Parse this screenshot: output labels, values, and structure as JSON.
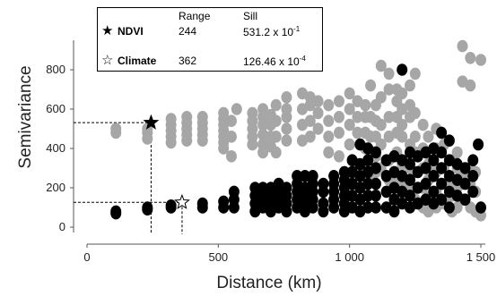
{
  "chart_data": {
    "type": "scatter",
    "xlabel": "Distance (km)",
    "ylabel": "Semivariance",
    "xlim": [
      -30,
      1530
    ],
    "ylim": [
      -30,
      950
    ],
    "x_ticks": [
      0,
      500,
      1000,
      1500
    ],
    "x_tick_labels": [
      "0",
      "500",
      "1 000",
      "1 500"
    ],
    "y_ticks": [
      0,
      200,
      400,
      600,
      800
    ],
    "y_tick_labels": [
      "0",
      "200",
      "400",
      "600",
      "800"
    ],
    "grid": false,
    "legend": {
      "placement": "top-left",
      "headers": [
        "Range",
        "Sill"
      ],
      "entries": [
        {
          "symbol": "filled-star",
          "name": "NDVI",
          "range": "244",
          "sill_base": "531.2 x 10",
          "sill_exp": "-1"
        },
        {
          "symbol": "open-star",
          "name": "Climate",
          "range": "362",
          "sill_base": "126.46 x 10",
          "sill_exp": "-4"
        }
      ]
    },
    "markers": [
      {
        "series": "NDVI",
        "x": 244,
        "y": 531
      },
      {
        "series": "Climate",
        "x": 362,
        "y": 126
      }
    ],
    "series": [
      {
        "color": "#a6a6a6",
        "points": [
          [
            110,
            480
          ],
          [
            110,
            500
          ],
          [
            230,
            450
          ],
          [
            230,
            480
          ],
          [
            230,
            500
          ],
          [
            320,
            430
          ],
          [
            320,
            460
          ],
          [
            320,
            490
          ],
          [
            320,
            520
          ],
          [
            320,
            550
          ],
          [
            380,
            440
          ],
          [
            380,
            470
          ],
          [
            380,
            500
          ],
          [
            380,
            530
          ],
          [
            380,
            560
          ],
          [
            440,
            440
          ],
          [
            440,
            470
          ],
          [
            440,
            500
          ],
          [
            440,
            530
          ],
          [
            440,
            560
          ],
          [
            520,
            400
          ],
          [
            520,
            430
          ],
          [
            520,
            460
          ],
          [
            520,
            490
          ],
          [
            520,
            520
          ],
          [
            520,
            550
          ],
          [
            520,
            580
          ],
          [
            550,
            360
          ],
          [
            550,
            460
          ],
          [
            550,
            540
          ],
          [
            570,
            600
          ],
          [
            630,
            420
          ],
          [
            630,
            460
          ],
          [
            630,
            500
          ],
          [
            630,
            540
          ],
          [
            630,
            580
          ],
          [
            670,
            380
          ],
          [
            670,
            420
          ],
          [
            670,
            470
          ],
          [
            670,
            520
          ],
          [
            670,
            560
          ],
          [
            670,
            600
          ],
          [
            700,
            410
          ],
          [
            700,
            460
          ],
          [
            700,
            520
          ],
          [
            700,
            570
          ],
          [
            720,
            380
          ],
          [
            720,
            460
          ],
          [
            720,
            540
          ],
          [
            720,
            620
          ],
          [
            760,
            440
          ],
          [
            760,
            500
          ],
          [
            760,
            560
          ],
          [
            760,
            600
          ],
          [
            760,
            660
          ],
          [
            820,
            440
          ],
          [
            820,
            520
          ],
          [
            820,
            600
          ],
          [
            820,
            680
          ],
          [
            850,
            460
          ],
          [
            850,
            540
          ],
          [
            850,
            620
          ],
          [
            850,
            660
          ],
          [
            880,
            500
          ],
          [
            880,
            580
          ],
          [
            880,
            640
          ],
          [
            920,
            380
          ],
          [
            920,
            460
          ],
          [
            920,
            540
          ],
          [
            920,
            620
          ],
          [
            960,
            360
          ],
          [
            960,
            480
          ],
          [
            960,
            560
          ],
          [
            960,
            640
          ],
          [
            1000,
            420
          ],
          [
            1000,
            520
          ],
          [
            1000,
            600
          ],
          [
            1000,
            680
          ],
          [
            1030,
            320
          ],
          [
            1030,
            480
          ],
          [
            1030,
            560
          ],
          [
            1030,
            640
          ],
          [
            1060,
            300
          ],
          [
            1060,
            400
          ],
          [
            1060,
            480
          ],
          [
            1060,
            560
          ],
          [
            1060,
            620
          ],
          [
            1080,
            260
          ],
          [
            1080,
            380
          ],
          [
            1080,
            460
          ],
          [
            1080,
            560
          ],
          [
            1080,
            720
          ],
          [
            1100,
            280
          ],
          [
            1100,
            360
          ],
          [
            1100,
            460
          ],
          [
            1100,
            540
          ],
          [
            1100,
            620
          ],
          [
            1120,
            300
          ],
          [
            1120,
            420
          ],
          [
            1120,
            520
          ],
          [
            1120,
            660
          ],
          [
            1120,
            820
          ],
          [
            1150,
            240
          ],
          [
            1150,
            340
          ],
          [
            1150,
            460
          ],
          [
            1150,
            560
          ],
          [
            1150,
            700
          ],
          [
            1150,
            780
          ],
          [
            1180,
            260
          ],
          [
            1180,
            380
          ],
          [
            1180,
            480
          ],
          [
            1180,
            560
          ],
          [
            1180,
            640
          ],
          [
            1180,
            700
          ],
          [
            1200,
            220
          ],
          [
            1200,
            320
          ],
          [
            1200,
            460
          ],
          [
            1200,
            520
          ],
          [
            1200,
            600
          ],
          [
            1200,
            680
          ],
          [
            1230,
            200
          ],
          [
            1230,
            300
          ],
          [
            1230,
            420
          ],
          [
            1230,
            560
          ],
          [
            1230,
            620
          ],
          [
            1230,
            720
          ],
          [
            1250,
            140
          ],
          [
            1250,
            280
          ],
          [
            1250,
            380
          ],
          [
            1250,
            460
          ],
          [
            1250,
            580
          ],
          [
            1250,
            780
          ],
          [
            1280,
            100
          ],
          [
            1280,
            200
          ],
          [
            1280,
            300
          ],
          [
            1280,
            400
          ],
          [
            1280,
            520
          ],
          [
            1300,
            80
          ],
          [
            1300,
            150
          ],
          [
            1300,
            240
          ],
          [
            1300,
            320
          ],
          [
            1300,
            460
          ],
          [
            1330,
            100
          ],
          [
            1330,
            180
          ],
          [
            1330,
            280
          ],
          [
            1330,
            400
          ],
          [
            1330,
            500
          ],
          [
            1360,
            120
          ],
          [
            1360,
            220
          ],
          [
            1360,
            300
          ],
          [
            1360,
            420
          ],
          [
            1390,
            80
          ],
          [
            1390,
            160
          ],
          [
            1390,
            240
          ],
          [
            1390,
            340
          ],
          [
            1410,
            100
          ],
          [
            1410,
            200
          ],
          [
            1410,
            300
          ],
          [
            1410,
            380
          ],
          [
            1430,
            140
          ],
          [
            1430,
            260
          ],
          [
            1430,
            740
          ],
          [
            1430,
            920
          ],
          [
            1460,
            100
          ],
          [
            1460,
            220
          ],
          [
            1460,
            300
          ],
          [
            1460,
            720
          ],
          [
            1460,
            860
          ],
          [
            1480,
            80
          ],
          [
            1480,
            180
          ],
          [
            1480,
            280
          ],
          [
            1500,
            850
          ],
          [
            1500,
            60
          ]
        ]
      },
      {
        "color": "#000000",
        "points": [
          [
            110,
            70
          ],
          [
            110,
            80
          ],
          [
            230,
            90
          ],
          [
            230,
            100
          ],
          [
            320,
            100
          ],
          [
            320,
            110
          ],
          [
            440,
            100
          ],
          [
            440,
            120
          ],
          [
            520,
            100
          ],
          [
            520,
            130
          ],
          [
            560,
            100
          ],
          [
            560,
            140
          ],
          [
            560,
            180
          ],
          [
            640,
            80
          ],
          [
            640,
            120
          ],
          [
            640,
            160
          ],
          [
            640,
            200
          ],
          [
            670,
            100
          ],
          [
            670,
            140
          ],
          [
            670,
            180
          ],
          [
            670,
            200
          ],
          [
            700,
            80
          ],
          [
            700,
            120
          ],
          [
            700,
            160
          ],
          [
            700,
            200
          ],
          [
            730,
            100
          ],
          [
            730,
            140
          ],
          [
            730,
            180
          ],
          [
            730,
            220
          ],
          [
            760,
            80
          ],
          [
            760,
            120
          ],
          [
            760,
            160
          ],
          [
            760,
            200
          ],
          [
            800,
            100
          ],
          [
            800,
            140
          ],
          [
            800,
            180
          ],
          [
            800,
            220
          ],
          [
            800,
            260
          ],
          [
            830,
            80
          ],
          [
            830,
            120
          ],
          [
            830,
            160
          ],
          [
            830,
            200
          ],
          [
            830,
            260
          ],
          [
            860,
            100
          ],
          [
            860,
            140
          ],
          [
            860,
            180
          ],
          [
            860,
            220
          ],
          [
            860,
            260
          ],
          [
            900,
            80
          ],
          [
            900,
            120
          ],
          [
            900,
            180
          ],
          [
            900,
            220
          ],
          [
            940,
            100
          ],
          [
            940,
            140
          ],
          [
            940,
            180
          ],
          [
            940,
            220
          ],
          [
            940,
            260
          ],
          [
            980,
            80
          ],
          [
            980,
            120
          ],
          [
            980,
            160
          ],
          [
            980,
            200
          ],
          [
            980,
            240
          ],
          [
            980,
            280
          ],
          [
            1010,
            100
          ],
          [
            1010,
            160
          ],
          [
            1010,
            220
          ],
          [
            1010,
            280
          ],
          [
            1010,
            340
          ],
          [
            1040,
            80
          ],
          [
            1040,
            140
          ],
          [
            1040,
            200
          ],
          [
            1040,
            260
          ],
          [
            1040,
            320
          ],
          [
            1040,
            420
          ],
          [
            1070,
            100
          ],
          [
            1070,
            160
          ],
          [
            1070,
            220
          ],
          [
            1070,
            280
          ],
          [
            1070,
            340
          ],
          [
            1070,
            400
          ],
          [
            1100,
            100
          ],
          [
            1100,
            160
          ],
          [
            1100,
            220
          ],
          [
            1100,
            300
          ],
          [
            1100,
            380
          ],
          [
            1140,
            100
          ],
          [
            1140,
            180
          ],
          [
            1140,
            260
          ],
          [
            1140,
            340
          ],
          [
            1170,
            80
          ],
          [
            1170,
            140
          ],
          [
            1170,
            200
          ],
          [
            1170,
            280
          ],
          [
            1170,
            360
          ],
          [
            1200,
            120
          ],
          [
            1200,
            180
          ],
          [
            1200,
            260
          ],
          [
            1200,
            340
          ],
          [
            1200,
            800
          ],
          [
            1230,
            100
          ],
          [
            1230,
            160
          ],
          [
            1230,
            240
          ],
          [
            1230,
            320
          ],
          [
            1230,
            380
          ],
          [
            1260,
            120
          ],
          [
            1260,
            200
          ],
          [
            1260,
            280
          ],
          [
            1260,
            360
          ],
          [
            1290,
            140
          ],
          [
            1290,
            220
          ],
          [
            1290,
            300
          ],
          [
            1290,
            380
          ],
          [
            1320,
            120
          ],
          [
            1320,
            180
          ],
          [
            1320,
            260
          ],
          [
            1320,
            340
          ],
          [
            1320,
            400
          ],
          [
            1350,
            140
          ],
          [
            1350,
            220
          ],
          [
            1350,
            300
          ],
          [
            1350,
            380
          ],
          [
            1350,
            480
          ],
          [
            1380,
            100
          ],
          [
            1380,
            180
          ],
          [
            1380,
            260
          ],
          [
            1380,
            340
          ],
          [
            1380,
            440
          ],
          [
            1410,
            160
          ],
          [
            1410,
            240
          ],
          [
            1410,
            320
          ],
          [
            1440,
            140
          ],
          [
            1440,
            220
          ],
          [
            1440,
            300
          ],
          [
            1470,
            180
          ],
          [
            1470,
            260
          ],
          [
            1470,
            340
          ],
          [
            1490,
            420
          ],
          [
            1500,
            100
          ]
        ]
      }
    ]
  }
}
